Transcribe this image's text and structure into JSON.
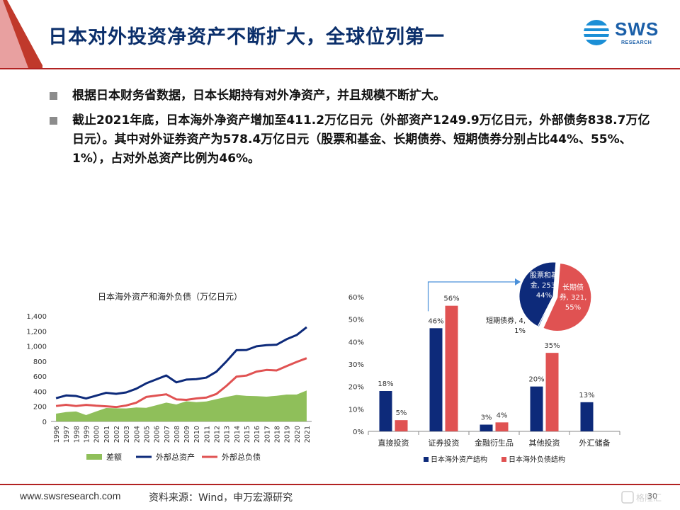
{
  "header": {
    "title": "日本对外投资净资产不断扩大，全球位列第一",
    "logo_main": "SWS",
    "logo_sub": "RESEARCH"
  },
  "bullets": [
    "根据日本财务省数据，日本长期持有对外净资产，并且规模不断扩大。",
    "截止2021年底，日本海外净资产增加至411.2万亿日元（外部资产1249.9万亿日元，外部债务838.7万亿日元）。其中对外证券资产为578.4万亿日元（股票和基金、长期债券、短期债券分别占比44%、55%、1%），占对外总资产比例为46%。"
  ],
  "footer": {
    "url": "www.swsresearch.com",
    "source": "资料来源：Wind，申万宏源研究",
    "page": "30"
  },
  "colors": {
    "navy": "#0d2a7a",
    "red": "#e05252",
    "green": "#8fbf5a",
    "accent_red": "#b22222"
  },
  "chart_data": [
    {
      "type": "line",
      "title": "日本海外资产和海外负债（万亿日元）",
      "x": [
        "1996",
        "1997",
        "1998",
        "1999",
        "2000",
        "2001",
        "2002",
        "2003",
        "2004",
        "2005",
        "2006",
        "2007",
        "2008",
        "2009",
        "2010",
        "2011",
        "2012",
        "2013",
        "2014",
        "2015",
        "2016",
        "2017",
        "2018",
        "2019",
        "2020",
        "2021"
      ],
      "ylim": [
        0,
        1400
      ],
      "yticks": [
        "0",
        "200",
        "400",
        "600",
        "800",
        "1,000",
        "1,200",
        "1,400"
      ],
      "series": [
        {
          "name": "差额",
          "kind": "area",
          "color": "#8fbf5a",
          "values": [
            103,
            124,
            133,
            85,
            133,
            179,
            175,
            173,
            186,
            181,
            215,
            250,
            226,
            268,
            256,
            265,
            296,
            325,
            351,
            339,
            336,
            329,
            341,
            357,
            357,
            411
          ]
        },
        {
          "name": "外部总资产",
          "kind": "line",
          "color": "#0d2a7a",
          "values": [
            308,
            345,
            338,
            305,
            342,
            380,
            366,
            385,
            434,
            506,
            558,
            610,
            519,
            555,
            561,
            582,
            661,
            797,
            945,
            948,
            997,
            1012,
            1018,
            1091,
            1146,
            1250
          ]
        },
        {
          "name": "外部总负债",
          "kind": "line",
          "color": "#e05252",
          "values": [
            205,
            221,
            205,
            220,
            209,
            201,
            191,
            212,
            248,
            325,
            343,
            360,
            293,
            287,
            305,
            317,
            365,
            472,
            594,
            609,
            661,
            683,
            677,
            734,
            789,
            839
          ]
        }
      ]
    },
    {
      "type": "bar",
      "title": "",
      "categories": [
        "直接投资",
        "证券投资",
        "金融衍生品",
        "其他投资",
        "外汇储备"
      ],
      "ylim": [
        0,
        60
      ],
      "yticks": [
        "0%",
        "10%",
        "20%",
        "30%",
        "40%",
        "50%",
        "60%"
      ],
      "series": [
        {
          "name": "日本海外资产结构",
          "color": "#0d2a7a",
          "values": [
            18,
            46,
            3,
            20,
            13
          ],
          "labels": [
            "18%",
            "46%",
            "3%",
            "20%",
            "13%"
          ]
        },
        {
          "name": "日本海外负债结构",
          "color": "#e05252",
          "values": [
            5,
            56,
            4,
            35,
            null
          ],
          "labels": [
            "5%",
            "56%",
            "4%",
            "35%",
            ""
          ]
        }
      ]
    },
    {
      "type": "pie",
      "title": "",
      "slices": [
        {
          "label": "股票和基金",
          "value": 253,
          "percent": "44%",
          "color": "#0d2a7a",
          "text_lines": [
            "股票和基",
            "金, 253,",
            "44%"
          ]
        },
        {
          "label": "长期债券",
          "value": 321,
          "percent": "55%",
          "color": "#e05252",
          "text_lines": [
            "长期债",
            "券, 321,",
            "55%"
          ]
        },
        {
          "label": "短期债券",
          "value": 4,
          "percent": "1%",
          "color": "#5a7ec0",
          "text_lines": [
            "短期债券, 4,",
            "1%"
          ]
        }
      ]
    }
  ]
}
